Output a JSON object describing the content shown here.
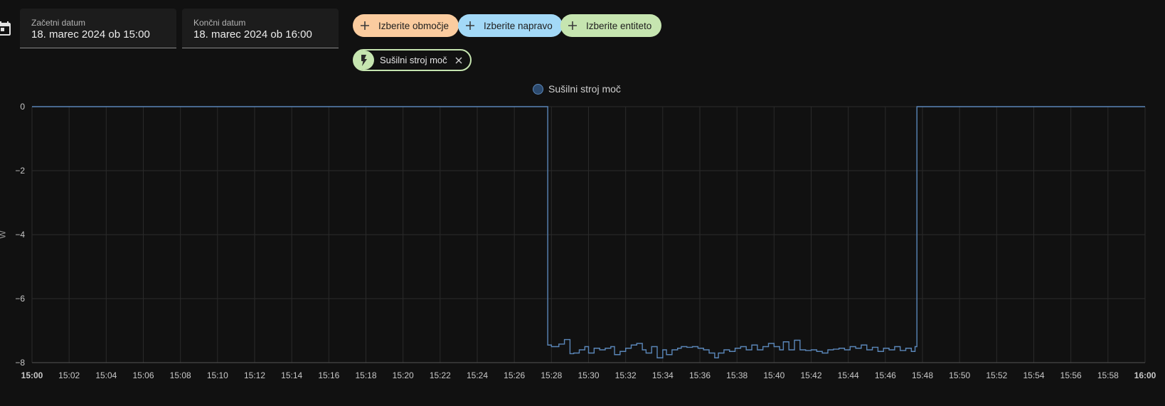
{
  "icons": {
    "calendar": "calendar-icon",
    "plus": "plus-icon",
    "entity": "lightning-icon",
    "close": "close-icon"
  },
  "start": {
    "label": "Začetni datum",
    "value": "18. marec 2024 ob 15:00"
  },
  "end": {
    "label": "Končni datum",
    "value": "18. marec 2024 ob 16:00"
  },
  "chips": {
    "area": "Izberite območje",
    "device": "Izberite napravo",
    "entity": "Izberite entiteto"
  },
  "selected_entity": "Sušilni stroj moč",
  "colors": {
    "area_chip": "#fbcc9f",
    "device_chip": "#a3d9f7",
    "entity_chip": "#c6e5b0",
    "series": "#5a86b8"
  },
  "chart_data": {
    "type": "line",
    "step": true,
    "ylabel": "W",
    "ylim": [
      -8,
      0
    ],
    "yticks": [
      "0",
      "−2",
      "−4",
      "−6",
      "−8"
    ],
    "ytick_values": [
      0,
      -2,
      -4,
      -6,
      -8
    ],
    "xlim": [
      0,
      60
    ],
    "xticks": [
      "15:00",
      "15:02",
      "15:04",
      "15:06",
      "15:08",
      "15:10",
      "15:12",
      "15:14",
      "15:16",
      "15:18",
      "15:20",
      "15:22",
      "15:24",
      "15:26",
      "15:28",
      "15:30",
      "15:32",
      "15:34",
      "15:36",
      "15:38",
      "15:40",
      "15:42",
      "15:44",
      "15:46",
      "15:48",
      "15:50",
      "15:52",
      "15:54",
      "15:56",
      "15:58",
      "16:00"
    ],
    "grid": true,
    "legend": "top-center",
    "series": [
      {
        "name": "Sušilni stroj moč",
        "x": [
          0,
          27.8,
          28.0,
          28.4,
          28.7,
          29.0,
          29.2,
          29.5,
          29.8,
          30.0,
          30.3,
          30.6,
          30.9,
          31.2,
          31.4,
          31.7,
          32.0,
          32.3,
          32.6,
          32.9,
          33.1,
          33.4,
          33.7,
          34.0,
          34.2,
          34.5,
          34.8,
          35.0,
          35.3,
          35.6,
          35.9,
          36.2,
          36.5,
          36.8,
          37.0,
          37.3,
          37.6,
          37.9,
          38.2,
          38.5,
          38.8,
          39.1,
          39.4,
          39.7,
          40.0,
          40.3,
          40.5,
          40.8,
          41.1,
          41.4,
          41.7,
          42.0,
          42.3,
          42.6,
          42.9,
          43.2,
          43.5,
          43.8,
          44.1,
          44.4,
          44.7,
          45.0,
          45.3,
          45.6,
          45.9,
          46.2,
          46.5,
          46.8,
          47.1,
          47.4,
          47.6,
          47.7,
          60
        ],
        "y": [
          0,
          -7.45,
          -7.5,
          -7.42,
          -7.28,
          -7.72,
          -7.7,
          -7.6,
          -7.5,
          -7.7,
          -7.55,
          -7.6,
          -7.55,
          -7.5,
          -7.75,
          -7.65,
          -7.55,
          -7.45,
          -7.4,
          -7.6,
          -7.7,
          -7.5,
          -7.85,
          -7.6,
          -7.75,
          -7.6,
          -7.55,
          -7.5,
          -7.52,
          -7.5,
          -7.55,
          -7.6,
          -7.7,
          -7.85,
          -7.7,
          -7.6,
          -7.65,
          -7.55,
          -7.5,
          -7.6,
          -7.45,
          -7.6,
          -7.5,
          -7.4,
          -7.5,
          -7.6,
          -7.35,
          -7.6,
          -7.3,
          -7.6,
          -7.62,
          -7.6,
          -7.65,
          -7.7,
          -7.6,
          -7.58,
          -7.55,
          -7.6,
          -7.5,
          -7.55,
          -7.45,
          -7.6,
          -7.52,
          -7.65,
          -7.55,
          -7.6,
          -7.5,
          -7.62,
          -7.55,
          -7.65,
          -7.5,
          0,
          0
        ]
      }
    ]
  }
}
